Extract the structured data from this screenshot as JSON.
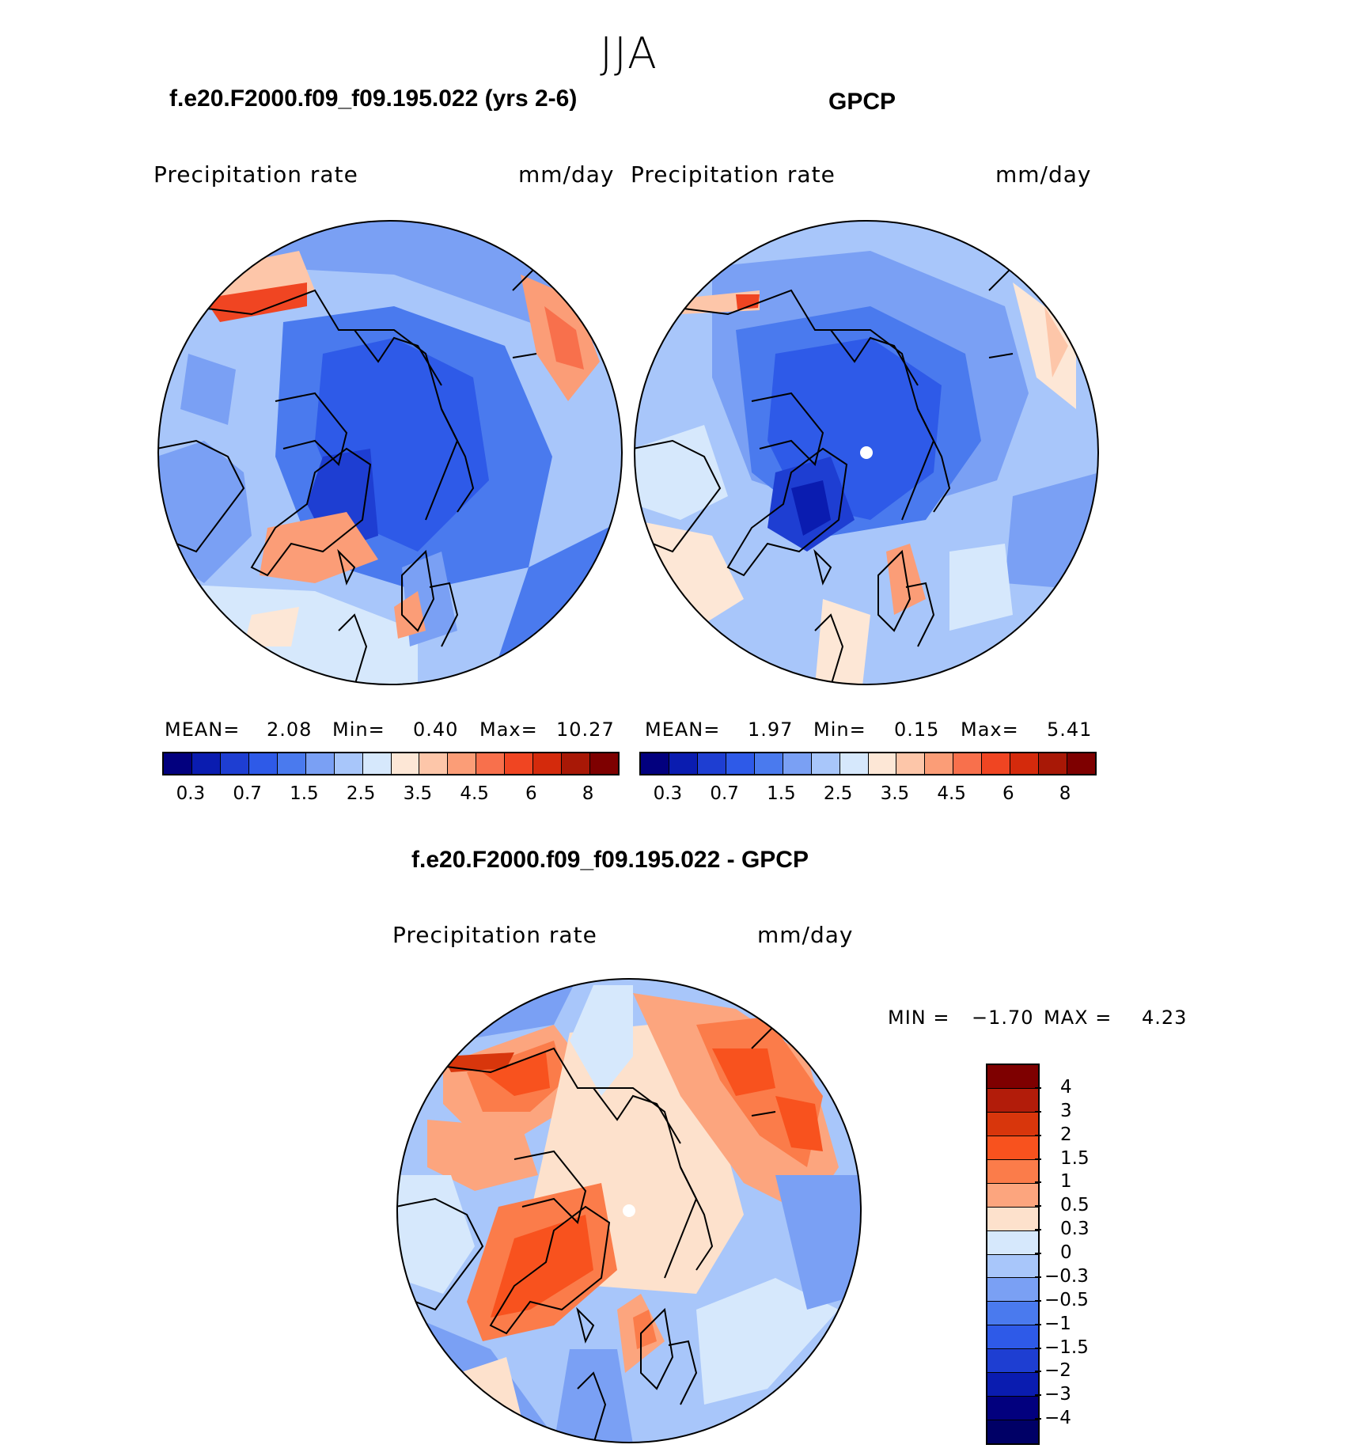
{
  "season": "JJA",
  "panels": {
    "model": {
      "title": "f.e20.F2000.f09_f09.195.022 (yrs 2-6)",
      "variable": "Precipitation  rate",
      "units": "mm/day",
      "stats": {
        "mean_label": "MEAN=",
        "mean": "2.08",
        "min_label": "Min=",
        "min": "0.40",
        "max_label": "Max=",
        "max": "10.27"
      }
    },
    "obs": {
      "title": "GPCP",
      "variable": "Precipitation  rate",
      "units": "mm/day",
      "stats": {
        "mean_label": "MEAN=",
        "mean": "1.97",
        "min_label": "Min=",
        "min": "0.15",
        "max_label": "Max=",
        "max": "5.41"
      }
    },
    "diff": {
      "title": "f.e20.F2000.f09_f09.195.022 - GPCP",
      "variable": "Precipitation  rate",
      "units": "mm/day",
      "stats": {
        "min_label": "MIN =",
        "min": "−1.70",
        "max_label": "MAX =",
        "max": "4.23"
      }
    }
  },
  "colorbar_abs": {
    "colors": [
      "#02007e",
      "#0a1cb0",
      "#1e3ed2",
      "#2e5ae8",
      "#4a7aee",
      "#7aa0f4",
      "#a8c6fa",
      "#d6e8fc",
      "#fde7d6",
      "#fdc6a9",
      "#fb9d77",
      "#f8704c",
      "#f04522",
      "#d42a0c",
      "#a81806",
      "#7e0000"
    ],
    "ticks": [
      "0.3",
      "0.7",
      "1.5",
      "2.5",
      "3.5",
      "4.5",
      "6",
      "8"
    ]
  },
  "colorbar_diff": {
    "colors": [
      "#7e0000",
      "#b21c0a",
      "#d8360c",
      "#f8521e",
      "#fb7c4a",
      "#fca57e",
      "#fde1cc",
      "#d6e8fc",
      "#a8c6fa",
      "#7aa0f4",
      "#4a7aee",
      "#2e5ae8",
      "#1e3ed2",
      "#0a1cb0",
      "#02007e",
      "#000066"
    ],
    "ticks": [
      "4",
      "3",
      "2",
      "1.5",
      "1",
      "0.5",
      "0.3",
      "0",
      "−0.3",
      "−0.5",
      "−1",
      "−1.5",
      "−2",
      "−3",
      "−4"
    ]
  }
}
